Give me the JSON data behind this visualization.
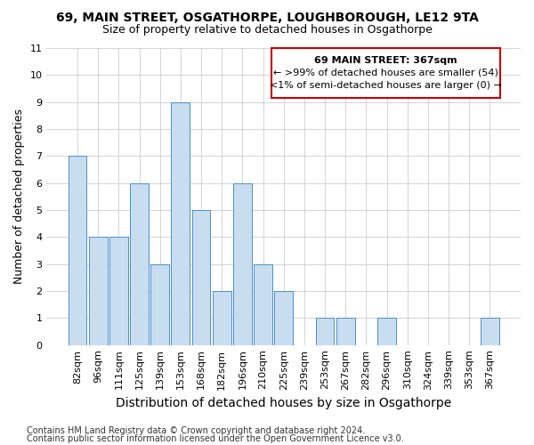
{
  "title": "69, MAIN STREET, OSGATHORPE, LOUGHBOROUGH, LE12 9TA",
  "subtitle": "Size of property relative to detached houses in Osgathorpe",
  "xlabel": "Distribution of detached houses by size in Osgathorpe",
  "ylabel": "Number of detached properties",
  "categories": [
    "82sqm",
    "96sqm",
    "111sqm",
    "125sqm",
    "139sqm",
    "153sqm",
    "168sqm",
    "182sqm",
    "196sqm",
    "210sqm",
    "225sqm",
    "239sqm",
    "253sqm",
    "267sqm",
    "282sqm",
    "296sqm",
    "310sqm",
    "324sqm",
    "339sqm",
    "353sqm",
    "367sqm"
  ],
  "values": [
    7,
    4,
    4,
    6,
    3,
    9,
    5,
    2,
    6,
    3,
    2,
    0,
    1,
    1,
    0,
    1,
    0,
    0,
    0,
    0,
    1
  ],
  "bar_color": "#c9ddf0",
  "bar_edge_color": "#4a90c8",
  "annotation_box_edge_color": "#cc0000",
  "annotation_text_line1": "69 MAIN STREET: 367sqm",
  "annotation_text_line2": "← >99% of detached houses are smaller (54)",
  "annotation_text_line3": "<1% of semi-detached houses are larger (0) →",
  "ylim": [
    0,
    11
  ],
  "yticks": [
    0,
    1,
    2,
    3,
    4,
    5,
    6,
    7,
    8,
    9,
    10,
    11
  ],
  "footer_line1": "Contains HM Land Registry data © Crown copyright and database right 2024.",
  "footer_line2": "Contains public sector information licensed under the Open Government Licence v3.0.",
  "background_color": "#ffffff",
  "grid_color": "#cccccc",
  "title_fontsize": 10,
  "subtitle_fontsize": 9,
  "ylabel_fontsize": 9,
  "xlabel_fontsize": 10,
  "tick_fontsize": 8,
  "footer_fontsize": 7,
  "ann_fontsize_title": 8,
  "ann_fontsize_body": 8
}
